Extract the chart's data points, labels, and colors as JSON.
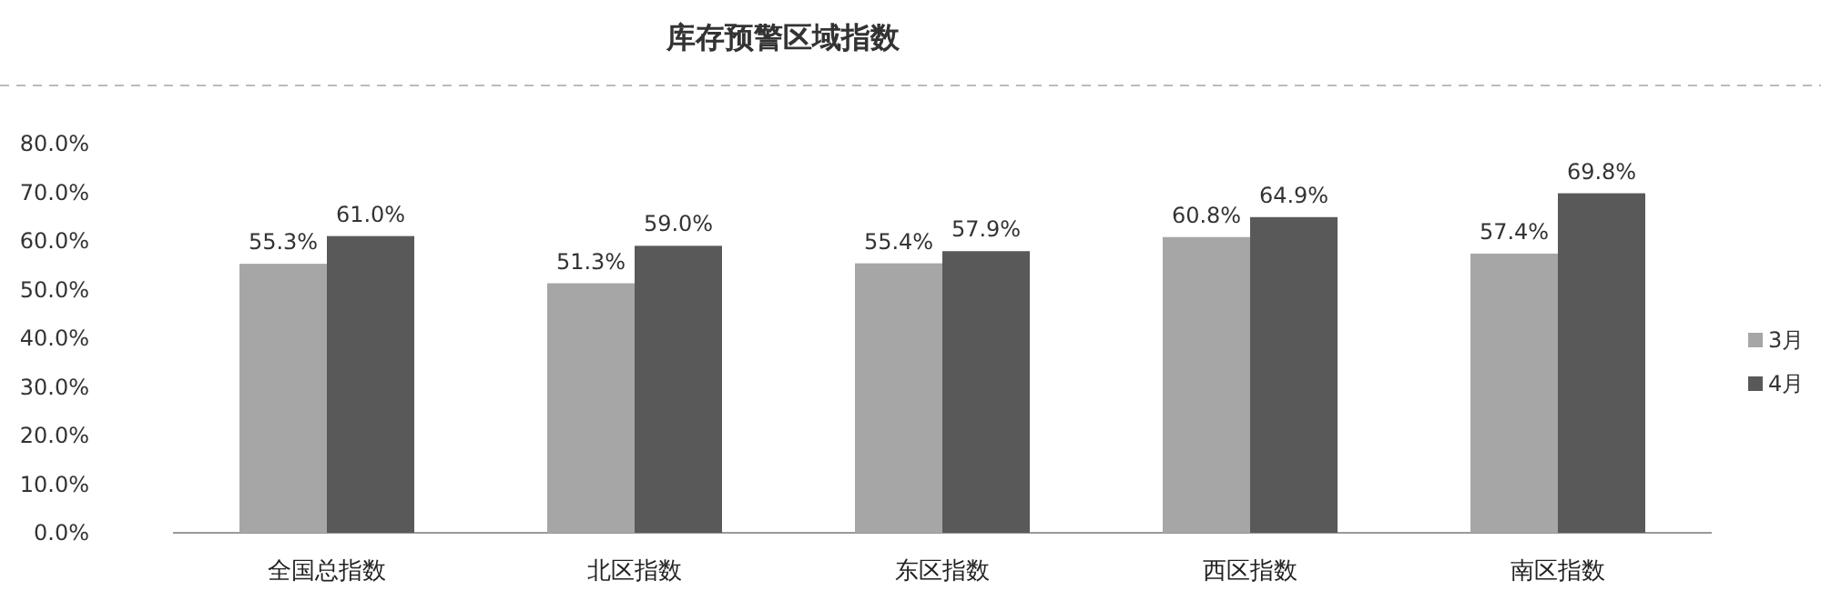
{
  "chart_data": {
    "type": "bar",
    "title": "库存预警区域指数",
    "categories": [
      "全国总指数",
      "北区指数",
      "东区指数",
      "西区指数",
      "南区指数"
    ],
    "series": [
      {
        "name": "3月",
        "color": "#a6a6a6",
        "values": [
          55.3,
          51.3,
          55.4,
          60.8,
          57.4
        ],
        "value_labels": [
          "55.3%",
          "51.3%",
          "55.4%",
          "60.8%",
          "57.4%"
        ]
      },
      {
        "name": "4月",
        "color": "#595959",
        "values": [
          61.0,
          59.0,
          57.9,
          64.9,
          69.8
        ],
        "value_labels": [
          "61.0%",
          "59.0%",
          "57.9%",
          "64.9%",
          "69.8%"
        ]
      }
    ],
    "ylim": [
      0,
      80
    ],
    "yticks": [
      {
        "value": 0,
        "label": "0.0%"
      },
      {
        "value": 10,
        "label": "10.0%"
      },
      {
        "value": 20,
        "label": "20.0%"
      },
      {
        "value": 30,
        "label": "30.0%"
      },
      {
        "value": 40,
        "label": "40.0%"
      },
      {
        "value": 50,
        "label": "50.0%"
      },
      {
        "value": 60,
        "label": "60.0%"
      },
      {
        "value": 70,
        "label": "70.0%"
      },
      {
        "value": 80,
        "label": "80.0%"
      }
    ],
    "grid": false,
    "legend": "right"
  }
}
